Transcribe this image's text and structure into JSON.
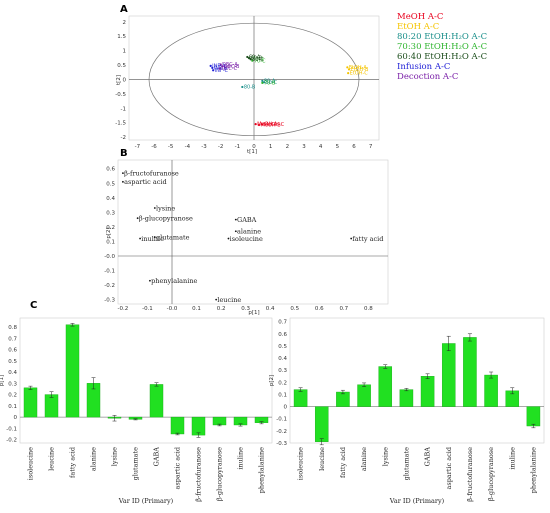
{
  "chart_data": [
    {
      "id": "A",
      "type": "scatter",
      "panel_label": "A",
      "xlabel": "t[1]",
      "ylabel": "t[2]",
      "xlim": [
        -7.5,
        7.5
      ],
      "ylim": [
        -2.1,
        2.2
      ],
      "xticks": [
        "-7",
        "-6",
        "-5",
        "-4",
        "-3",
        "-2",
        "-1",
        "0",
        "1",
        "2",
        "3",
        "4",
        "5",
        "6",
        "7"
      ],
      "yticks": [
        "-2",
        "-1.5",
        "-1",
        "-0.5",
        "0",
        "0.5",
        "1",
        "1.5",
        "2"
      ],
      "ellipse": true,
      "series": [
        {
          "name": "MeOH A-C",
          "color": "#e8001c",
          "points": [
            {
              "x": 0.1,
              "y": -1.55,
              "label": "MeOH-A"
            },
            {
              "x": 0.3,
              "y": -1.58,
              "label": "MeOH-B"
            },
            {
              "x": 0.5,
              "y": -1.56,
              "label": "MeOH-C"
            }
          ]
        },
        {
          "name": "EtOH A-C",
          "color": "#f5c400",
          "points": [
            {
              "x": 5.6,
              "y": 0.42,
              "label": "EtOH-A"
            },
            {
              "x": 5.7,
              "y": 0.35,
              "label": "EtOH-B"
            },
            {
              "x": 5.65,
              "y": 0.22,
              "label": "EtOH-C"
            }
          ]
        },
        {
          "name": "80:20 EtOH:H₂O A-C",
          "color": "#1a8f8a",
          "points": [
            {
              "x": 0.5,
              "y": -0.05,
              "label": "80-A"
            },
            {
              "x": 0.6,
              "y": -0.1,
              "label": "80-C"
            },
            {
              "x": -0.7,
              "y": -0.26,
              "label": "80-B"
            }
          ]
        },
        {
          "name": "70:30 EtOH:H₂O A-C",
          "color": "#2fb52f",
          "points": [
            {
              "x": -0.2,
              "y": 0.72,
              "label": "70-A"
            },
            {
              "x": -0.1,
              "y": 0.65,
              "label": "70-C"
            },
            {
              "x": 0.5,
              "y": -0.12,
              "label": "70-B"
            }
          ]
        },
        {
          "name": "60:40 EtOH:H₂O A-C",
          "color": "#1b4d1b",
          "points": [
            {
              "x": -0.4,
              "y": 0.78,
              "label": "60-A"
            },
            {
              "x": -0.3,
              "y": 0.74,
              "label": "60-B"
            },
            {
              "x": -0.2,
              "y": 0.7,
              "label": "60-C"
            }
          ]
        },
        {
          "name": "Infusion A-C",
          "color": "#1f1fd6",
          "points": [
            {
              "x": -2.6,
              "y": 0.47,
              "label": "INF-A"
            },
            {
              "x": -2.5,
              "y": 0.4,
              "label": "INF-B"
            },
            {
              "x": -2.45,
              "y": 0.32,
              "label": "INF-C"
            }
          ]
        },
        {
          "name": "Decoction A-C",
          "color": "#7a1fa8",
          "points": [
            {
              "x": -2.0,
              "y": 0.52,
              "label": "DEC-A"
            },
            {
              "x": -1.9,
              "y": 0.45,
              "label": "DEC-B"
            },
            {
              "x": -2.05,
              "y": 0.38,
              "label": "DEC-C"
            }
          ]
        }
      ],
      "legend": [
        {
          "text": "MeOH A-C",
          "color": "#e8001c"
        },
        {
          "text": "EtOH A-C",
          "color": "#f5c400"
        },
        {
          "text": "80:20 EtOH:H₂O A-C",
          "color": "#1a8f8a"
        },
        {
          "text": "70:30 EtOH:H₂O A-C",
          "color": "#2fb52f"
        },
        {
          "text": "60:40 EtOH:H₂O A-C",
          "color": "#1b4d1b"
        },
        {
          "text": "Infusion A-C",
          "color": "#1f1fd6"
        },
        {
          "text": "Decoction A-C",
          "color": "#7a1fa8"
        }
      ]
    },
    {
      "id": "B",
      "type": "scatter",
      "panel_label": "B",
      "xlabel": "p[1]",
      "ylabel": "p[2]",
      "xlim": [
        -0.22,
        0.88
      ],
      "ylim": [
        -0.33,
        0.66
      ],
      "xticks": [
        "-0.2",
        "-0.1",
        "-0.0",
        "0.1",
        "0.2",
        "0.3",
        "0.4",
        "0.5",
        "0.6",
        "0.7",
        "0.8"
      ],
      "yticks": [
        "-0.3",
        "-0.2",
        "-0.1",
        "-0.0",
        "0.1",
        "0.2",
        "0.3",
        "0.4",
        "0.5",
        "0.6"
      ],
      "points": [
        {
          "label": "β-fructofuranose",
          "x": -0.2,
          "y": 0.57
        },
        {
          "label": "aspartic acid",
          "x": -0.2,
          "y": 0.51
        },
        {
          "label": "lysine",
          "x": -0.07,
          "y": 0.33
        },
        {
          "label": "β-glucopyranose",
          "x": -0.14,
          "y": 0.26
        },
        {
          "label": "GABA",
          "x": 0.26,
          "y": 0.25
        },
        {
          "label": "alanine",
          "x": 0.26,
          "y": 0.17
        },
        {
          "label": "inuline",
          "x": -0.13,
          "y": 0.12
        },
        {
          "label": "glutamate",
          "x": -0.07,
          "y": 0.13
        },
        {
          "label": "isoleucine",
          "x": 0.23,
          "y": 0.12
        },
        {
          "label": "fatty acid",
          "x": 0.73,
          "y": 0.12
        },
        {
          "label": "phenylalanine",
          "x": -0.09,
          "y": -0.17
        },
        {
          "label": "leucine",
          "x": 0.18,
          "y": -0.3
        }
      ]
    },
    {
      "id": "C1",
      "type": "bar",
      "panel_label": "C",
      "xlabel": "Var ID (Primary)",
      "ylabel": "p[1]",
      "ylim": [
        -0.23,
        0.88
      ],
      "yticks": [
        "-0.2",
        "-0.1",
        "0",
        "0.1",
        "0.2",
        "0.3",
        "0.4",
        "0.5",
        "0.6",
        "0.7",
        "0.8"
      ],
      "categories": [
        "isoleucine",
        "leucine",
        "fatty acid",
        "alanine",
        "lysine",
        "glutamate",
        "GABA",
        "aspartic acid",
        "β-fructofuranose",
        "β-glucopyranose",
        "inuline",
        "phenylalanine"
      ],
      "values": [
        0.26,
        0.2,
        0.82,
        0.3,
        -0.01,
        -0.02,
        0.29,
        -0.15,
        -0.16,
        -0.07,
        -0.07,
        -0.05
      ],
      "errors": [
        0.015,
        0.025,
        0.012,
        0.05,
        0.025,
        0.005,
        0.015,
        0.008,
        0.02,
        0.008,
        0.01,
        0.01
      ],
      "color": "#21e021"
    },
    {
      "id": "C2",
      "type": "bar",
      "ylabel": "p[2]",
      "xlabel": "Var ID (Primary)",
      "ylim": [
        -0.3,
        0.73
      ],
      "yticks": [
        "-0.3",
        "-0.2",
        "-0.1",
        "0",
        "0.1",
        "0.2",
        "0.3",
        "0.4",
        "0.5",
        "0.6",
        "0.7"
      ],
      "categories": [
        "isoleucine",
        "leucine",
        "fatty acid",
        "alanine",
        "lysine",
        "glutamate",
        "GABA",
        "aspartic acid",
        "β-fructofuranose",
        "β-glucopyranose",
        "inuline",
        "phenylalanine"
      ],
      "values": [
        0.14,
        -0.29,
        0.12,
        0.18,
        0.33,
        0.14,
        0.25,
        0.52,
        0.57,
        0.26,
        0.13,
        -0.16
      ],
      "errors": [
        0.015,
        0.025,
        0.015,
        0.015,
        0.015,
        0.01,
        0.02,
        0.06,
        0.03,
        0.025,
        0.025,
        0.015
      ],
      "color": "#21e021"
    }
  ]
}
